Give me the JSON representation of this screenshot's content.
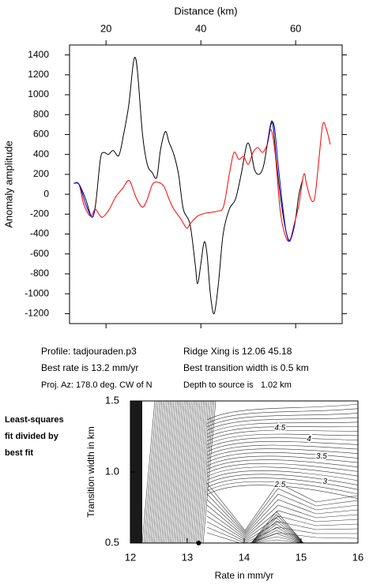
{
  "chart_data": [
    {
      "type": "line",
      "xlabel": "Distance (km)",
      "ylabel": "Anomaly amplitude",
      "xlim": [
        12.3,
        69.8
      ],
      "ylim": [
        -1300,
        1500
      ],
      "xticks": [
        20,
        40,
        60
      ],
      "yticks": [
        -1200,
        -1000,
        -800,
        -600,
        -400,
        -200,
        0,
        200,
        400,
        600,
        800,
        1000,
        1200,
        1400
      ],
      "series": [
        {
          "color": "#000000",
          "x": [
            13.2,
            14.3,
            15.7,
            17.0,
            17.8,
            18.8,
            19.5,
            20.5,
            21.5,
            22.7,
            23.7,
            24.8,
            25.7,
            26.2,
            26.7,
            27.7,
            28.7,
            29.7,
            30.7,
            31.5,
            32.5,
            33.3,
            34.3,
            35.3,
            36.3,
            37.7,
            38.8,
            39.3,
            40.0,
            40.7,
            41.3,
            42.0,
            42.8,
            43.7,
            44.7,
            46.0,
            47.3,
            48.5,
            49.7,
            50.5,
            51.3,
            52.3,
            53.2,
            54.0,
            54.7,
            55.2,
            56.0,
            57.0,
            58.0,
            58.8,
            59.8,
            60.7,
            61.5
          ],
          "values": [
            110,
            100,
            -50,
            -230,
            -100,
            350,
            420,
            400,
            440,
            390,
            600,
            900,
            1300,
            1370,
            1200,
            600,
            300,
            220,
            170,
            450,
            630,
            520,
            400,
            200,
            -150,
            -300,
            -700,
            -900,
            -700,
            -480,
            -600,
            -1000,
            -1200,
            -900,
            -400,
            -150,
            -50,
            200,
            500,
            450,
            250,
            200,
            280,
            500,
            700,
            700,
            300,
            -100,
            -380,
            -460,
            -300,
            0,
            150
          ]
        },
        {
          "color": "#ff0000",
          "x": [
            13.2,
            14.3,
            15.3,
            16.7,
            17.7,
            18.5,
            19.3,
            20.7,
            22.0,
            23.5,
            24.8,
            25.7,
            26.5,
            27.7,
            28.7,
            29.8,
            31.0,
            32.2,
            33.3,
            34.3,
            35.8,
            37.0,
            37.7,
            39.3,
            41.0,
            43.5,
            44.8,
            46.0,
            47.0,
            48.0,
            49.0,
            50.0,
            51.0,
            52.0,
            53.0,
            54.0,
            54.8,
            55.7,
            56.7,
            57.7,
            58.7,
            59.7,
            60.7,
            61.7,
            62.3,
            63.2,
            64.0,
            64.8,
            65.7,
            66.5,
            67.3
          ],
          "values": [
            110,
            100,
            -100,
            -220,
            -150,
            -200,
            -230,
            -150,
            -30,
            60,
            140,
            50,
            -50,
            -130,
            -50,
            100,
            120,
            80,
            -50,
            -150,
            -250,
            -340,
            -300,
            -220,
            -190,
            -170,
            -120,
            200,
            420,
            350,
            380,
            300,
            420,
            470,
            420,
            500,
            650,
            400,
            -150,
            -400,
            -470,
            -300,
            -100,
            200,
            100,
            -50,
            -40,
            300,
            700,
            650,
            500
          ]
        },
        {
          "color": "#0000ff",
          "x": [
            13.2,
            14.3,
            15.7,
            17.0,
            17.7,
            null,
            54.0,
            54.8,
            55.5,
            56.3,
            57.2,
            58.0,
            58.8,
            59.8
          ],
          "values": [
            110,
            100,
            -100,
            -230,
            -150,
            null,
            500,
            700,
            680,
            300,
            -100,
            -380,
            -470,
            -300
          ]
        }
      ]
    },
    {
      "type": "contour",
      "xlabel": "Rate in mm/yr",
      "ylabel": "Transition width in km",
      "xlim": [
        12,
        16
      ],
      "ylim": [
        0.5,
        1.5
      ],
      "xticks": [
        12,
        13,
        14,
        15,
        16
      ],
      "yticks": [
        0.5,
        {
          "value": 1,
          "label": "1.0"
        },
        1.5
      ],
      "contour_labels": [
        {
          "value": 4.5,
          "x": 14.63,
          "y": 1.31
        },
        {
          "value": 4,
          "x": 15.14,
          "y": 1.23
        },
        {
          "value": 3.5,
          "x": 15.36,
          "y": 1.11
        },
        {
          "value": 3,
          "x": 15.42,
          "y": 0.93
        },
        {
          "value": 2.5,
          "x": 14.63,
          "y": 0.91
        }
      ],
      "best_fit": {
        "x": 13.2,
        "y": 0.5
      }
    }
  ],
  "profile_info": {
    "left": [
      "Profile: tadjouraden.p3",
      "Best rate is 13.2 mm/yr",
      "Proj. Az: 178.0 deg. CW of N"
    ],
    "right": [
      "Ridge Xing is 12.06 45.18",
      "Best transition width is 0.5 km",
      "Depth to source is   1.02 km"
    ]
  },
  "side_label": [
    "Least-squares",
    "fit divided by",
    "best fit"
  ]
}
